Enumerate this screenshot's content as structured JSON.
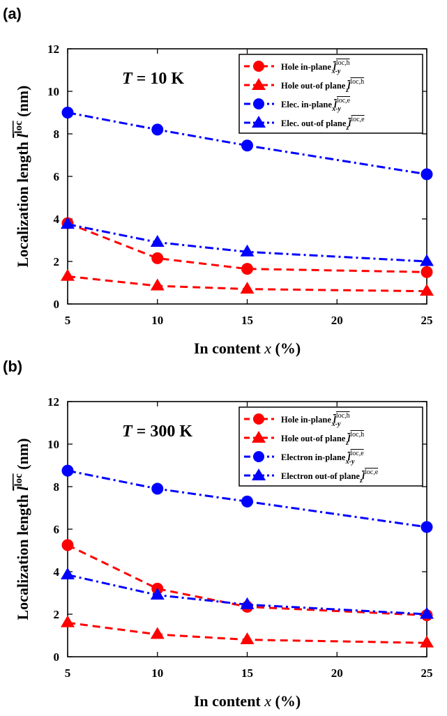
{
  "chart_data": [
    {
      "panel_label": "(a)",
      "type": "line",
      "annotation": "T = 10 K",
      "xlabel": "In content x (%)",
      "ylabel": "Localization length l^loc (nm)",
      "xlim": [
        5,
        25
      ],
      "ylim": [
        0,
        12
      ],
      "xticks": [
        5,
        10,
        15,
        20,
        25
      ],
      "yticks": [
        0,
        2,
        4,
        6,
        8,
        10,
        12
      ],
      "grid": false,
      "legend_position": "top-right",
      "x": [
        5,
        10,
        15,
        25
      ],
      "series": [
        {
          "name": "Hole in-plane l_x-y^loc,h",
          "legend_text": "Hole in-plane",
          "sym": "x-y",
          "sup": "loc,h",
          "values": [
            3.8,
            2.15,
            1.65,
            1.5
          ],
          "color": "#ff0000",
          "line": "dashed",
          "marker": "circle"
        },
        {
          "name": "Hole out-of plane l_z^loc,h",
          "legend_text": "Hole out-of plane",
          "sym": "z",
          "sup": "loc,h",
          "values": [
            1.3,
            0.85,
            0.7,
            0.6
          ],
          "color": "#ff0000",
          "line": "dashed",
          "marker": "triangle"
        },
        {
          "name": "Elec. in-plane l_x-y^loc,e",
          "legend_text": "Elec. in-plane",
          "sym": "x-y",
          "sup": "loc,e",
          "values": [
            9.0,
            8.2,
            7.45,
            6.1
          ],
          "color": "#0000ff",
          "line": "dashdot",
          "marker": "circle"
        },
        {
          "name": "Elec. out-of plane l_z^loc,e",
          "legend_text": "Elec. out-of plane",
          "sym": "z",
          "sup": "loc,e",
          "values": [
            3.75,
            2.9,
            2.45,
            2.0
          ],
          "color": "#0000ff",
          "line": "dashdot",
          "marker": "triangle"
        }
      ]
    },
    {
      "panel_label": "(b)",
      "type": "line",
      "annotation": "T = 300 K",
      "xlabel": "In content x (%)",
      "ylabel": "Localization length l^loc (nm)",
      "xlim": [
        5,
        25
      ],
      "ylim": [
        0,
        12
      ],
      "xticks": [
        5,
        10,
        15,
        20,
        25
      ],
      "yticks": [
        0,
        2,
        4,
        6,
        8,
        10,
        12
      ],
      "grid": false,
      "legend_position": "top-right",
      "x": [
        5,
        10,
        15,
        25
      ],
      "series": [
        {
          "name": "Hole in-plane l_x-y^loc,h",
          "legend_text": "Hole in-plane",
          "sym": "x-y",
          "sup": "loc,h",
          "values": [
            5.25,
            3.2,
            2.35,
            1.95
          ],
          "color": "#ff0000",
          "line": "dashed",
          "marker": "circle"
        },
        {
          "name": "Hole out-of plane l_z^loc,h",
          "legend_text": "Hole out-of plane",
          "sym": "z",
          "sup": "loc,h",
          "values": [
            1.6,
            1.05,
            0.8,
            0.65
          ],
          "color": "#ff0000",
          "line": "dashed",
          "marker": "triangle"
        },
        {
          "name": "Electron in-plane l_x-y^loc,e",
          "legend_text": "Electron in-plane",
          "sym": "x-y",
          "sup": "loc,e",
          "values": [
            8.75,
            7.9,
            7.3,
            6.1
          ],
          "color": "#0000ff",
          "line": "dashdot",
          "marker": "circle"
        },
        {
          "name": "Electron out-of plane l_z^loc,e",
          "legend_text": "Electron out-of plane",
          "sym": "z",
          "sup": "loc,e",
          "values": [
            3.85,
            2.9,
            2.45,
            2.0
          ],
          "color": "#0000ff",
          "line": "dashdot",
          "marker": "triangle"
        }
      ]
    }
  ]
}
